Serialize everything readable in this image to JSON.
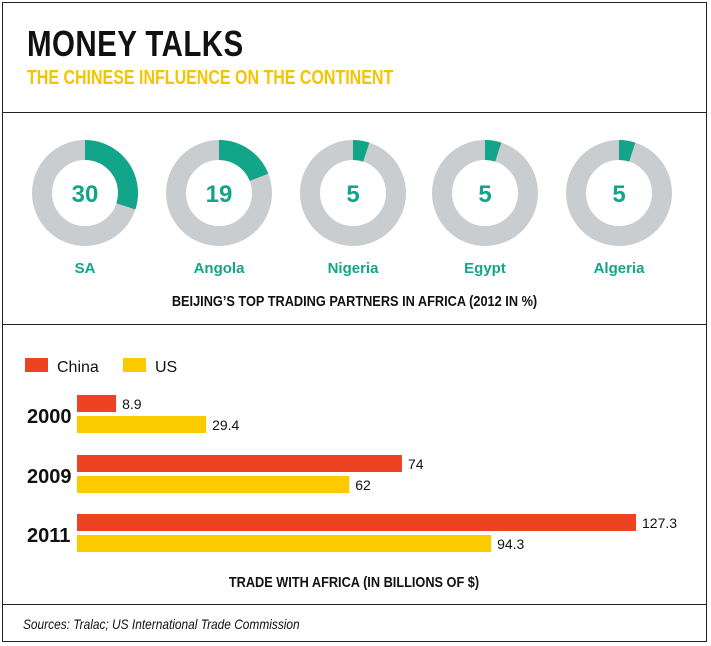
{
  "title": "MONEY TALKS",
  "subtitle": "THE CHINESE INFLUENCE ON THE CONTINENT",
  "sources": "Sources: Tralac; US International Trade Commission",
  "colors": {
    "teal": "#13a58a",
    "grey": "#c9cdcf",
    "china": "#ee4323",
    "us": "#fbcb00",
    "teal_text": "#13a58a"
  },
  "chart_data": [
    {
      "type": "pie",
      "variant": "donut",
      "title": "BEIJING’S TOP TRADING PARTNERS IN AFRICA (2012 IN %)",
      "categories": [
        "SA",
        "Angola",
        "Nigeria",
        "Egypt",
        "Algeria"
      ],
      "values": [
        30,
        19,
        5,
        5,
        5
      ],
      "max": 100
    },
    {
      "type": "bar",
      "orientation": "horizontal",
      "title": "TRADE WITH AFRICA (IN BILLIONS OF $)",
      "categories": [
        "2000",
        "2009",
        "2011"
      ],
      "series": [
        {
          "name": "China",
          "values": [
            8.9,
            74,
            127.3
          ],
          "labels": [
            "8.9",
            "74",
            "127.3"
          ]
        },
        {
          "name": "US",
          "values": [
            29.4,
            62,
            94.3
          ],
          "labels": [
            "29.4",
            "62",
            "94.3"
          ]
        }
      ],
      "legend": "top-left",
      "xlim": [
        0,
        127.3
      ]
    }
  ]
}
